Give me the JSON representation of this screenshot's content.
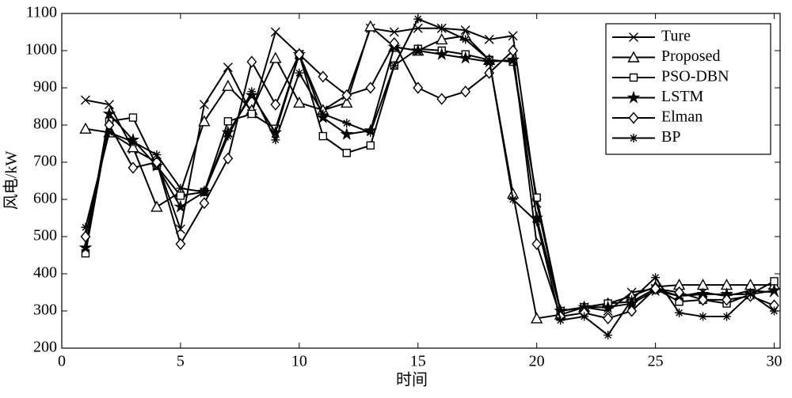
{
  "chart_data": {
    "type": "line",
    "x_label": "时间",
    "y_label": "风电/kW",
    "x": [
      1,
      2,
      3,
      4,
      5,
      6,
      7,
      8,
      9,
      10,
      11,
      12,
      13,
      14,
      15,
      16,
      17,
      18,
      19,
      20,
      21,
      22,
      23,
      24,
      25,
      26,
      27,
      28,
      29,
      30
    ],
    "xlim": [
      0,
      30.25
    ],
    "xticks": [
      0,
      5,
      10,
      15,
      20,
      25,
      30
    ],
    "ylim": [
      200,
      1100
    ],
    "yticks": [
      200,
      300,
      400,
      500,
      600,
      700,
      800,
      900,
      1000,
      1100
    ],
    "legend": "upper right",
    "series": [
      {
        "name": "Ture",
        "color": "#000000",
        "marker": "x",
        "values": [
          867,
          855,
          735,
          700,
          520,
          855,
          955,
          830,
          1050,
          990,
          840,
          880,
          1060,
          1050,
          1060,
          1060,
          1055,
          1030,
          1040,
          590,
          300,
          310,
          300,
          350,
          360,
          340,
          350,
          340,
          355,
          350
        ]
      },
      {
        "name": "Proposed",
        "color": "#000000",
        "marker": "triangle",
        "values": [
          790,
          780,
          740,
          580,
          620,
          810,
          905,
          840,
          980,
          860,
          840,
          860,
          1065,
          1010,
          1000,
          1030,
          1040,
          975,
          615,
          280,
          290,
          310,
          320,
          340,
          365,
          370,
          370,
          370,
          370,
          370
        ]
      },
      {
        "name": "PSO-DBN",
        "color": "#000000",
        "marker": "square",
        "values": [
          455,
          810,
          820,
          690,
          610,
          620,
          810,
          830,
          790,
          990,
          770,
          725,
          745,
          960,
          1005,
          1000,
          990,
          975,
          970,
          605,
          300,
          310,
          320,
          325,
          360,
          325,
          330,
          320,
          345,
          380
        ]
      },
      {
        "name": "LSTM",
        "color": "#000000",
        "marker": "star",
        "values": [
          470,
          830,
          760,
          690,
          580,
          620,
          780,
          880,
          780,
          990,
          820,
          775,
          785,
          1010,
          1000,
          990,
          980,
          970,
          975,
          550,
          300,
          310,
          310,
          320,
          355,
          340,
          345,
          345,
          345,
          355
        ]
      },
      {
        "name": "Elman",
        "color": "#000000",
        "marker": "diamond",
        "values": [
          500,
          800,
          685,
          700,
          480,
          590,
          710,
          970,
          855,
          990,
          930,
          880,
          900,
          1020,
          900,
          870,
          890,
          940,
          1000,
          480,
          285,
          295,
          280,
          300,
          360,
          350,
          330,
          330,
          340,
          315
        ]
      },
      {
        "name": "BP",
        "color": "#000000",
        "marker": "asterisk",
        "values": [
          525,
          780,
          755,
          720,
          630,
          620,
          770,
          890,
          760,
          940,
          830,
          805,
          780,
          960,
          1085,
          1060,
          1030,
          975,
          600,
          540,
          275,
          285,
          235,
          330,
          390,
          295,
          285,
          285,
          345,
          300
        ]
      }
    ]
  }
}
